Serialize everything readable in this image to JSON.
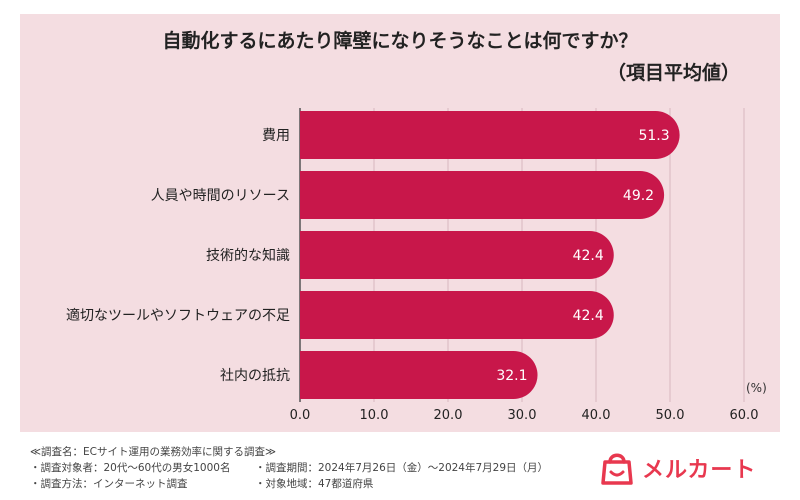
{
  "chart_data": {
    "type": "bar",
    "orientation": "horizontal",
    "title": "自動化するにあたり障壁になりそうなことは何ですか？",
    "subtitle": "（項目平均値）",
    "categories": [
      "費用",
      "人員や時間のリソース",
      "技術的な知識",
      "適切なツールやソフトウェアの不足",
      "社内の抵抗"
    ],
    "values": [
      51.3,
      49.2,
      42.4,
      42.4,
      32.1
    ],
    "value_labels": [
      "51.3",
      "49.2",
      "42.4",
      "42.4",
      "32.1"
    ],
    "xlim": [
      0,
      60
    ],
    "ticks": [
      "0.0",
      "10.0",
      "20.0",
      "30.0",
      "40.0",
      "50.0",
      "60.0"
    ],
    "unit_label": "(%)",
    "grid": true,
    "bar_color": "#c8174a",
    "background_color": "#f4dde1"
  },
  "footer": {
    "survey_name": "≪調査名：ECサイト運用の業務効率に関する調査≫",
    "target": "・調査対象者：20代～60代の男女1000名",
    "period": "・調査期間：2024年7月26日（金）～2024年7月29日（月）",
    "method": "・調査方法：インターネット調査",
    "region": "・対象地域：47都道府県"
  },
  "logo": {
    "name": "メルカート",
    "color": "#e8384f"
  }
}
